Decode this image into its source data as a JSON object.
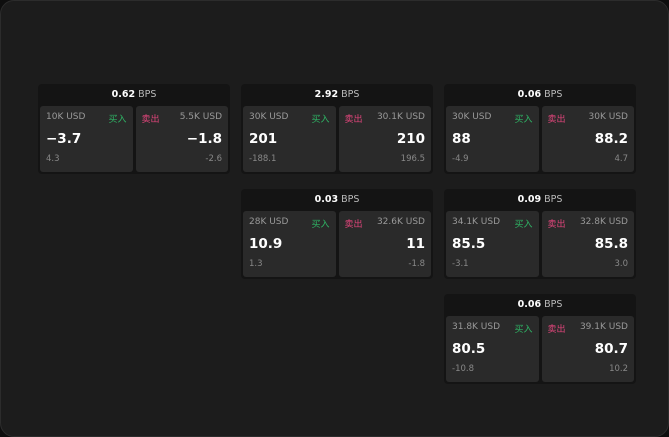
{
  "unit": "BPS",
  "cards": [
    {
      "spread": "0.62",
      "buy_label": "买入",
      "sell_label": "卖出",
      "bid": {
        "size": "10K USD",
        "price": "−3.7",
        "change": "4.3"
      },
      "ask": {
        "size": "5.5K USD",
        "price": "−1.8",
        "change": "-2.6"
      }
    },
    {
      "spread": "2.92",
      "buy_label": "买入",
      "sell_label": "卖出",
      "bid": {
        "size": "30K USD",
        "price": "201",
        "change": "-188.1"
      },
      "ask": {
        "size": "30.1K USD",
        "price": "210",
        "change": "196.5"
      }
    },
    {
      "spread": "0.06",
      "buy_label": "买入",
      "sell_label": "卖出",
      "bid": {
        "size": "30K USD",
        "price": "88",
        "change": "-4.9"
      },
      "ask": {
        "size": "30K USD",
        "price": "88.2",
        "change": "4.7"
      }
    },
    {
      "spread": "0.03",
      "buy_label": "买入",
      "sell_label": "卖出",
      "bid": {
        "size": "28K USD",
        "price": "10.9",
        "change": "1.3"
      },
      "ask": {
        "size": "32.6K USD",
        "price": "11",
        "change": "-1.8"
      }
    },
    {
      "spread": "0.09",
      "buy_label": "买入",
      "sell_label": "卖出",
      "bid": {
        "size": "34.1K USD",
        "price": "85.5",
        "change": "-3.1"
      },
      "ask": {
        "size": "32.8K USD",
        "price": "85.8",
        "change": "3.0"
      }
    },
    {
      "spread": "0.06",
      "buy_label": "买入",
      "sell_label": "卖出",
      "bid": {
        "size": "31.8K USD",
        "price": "80.5",
        "change": "-10.8"
      },
      "ask": {
        "size": "39.1K USD",
        "price": "80.7",
        "change": "10.2"
      }
    }
  ]
}
